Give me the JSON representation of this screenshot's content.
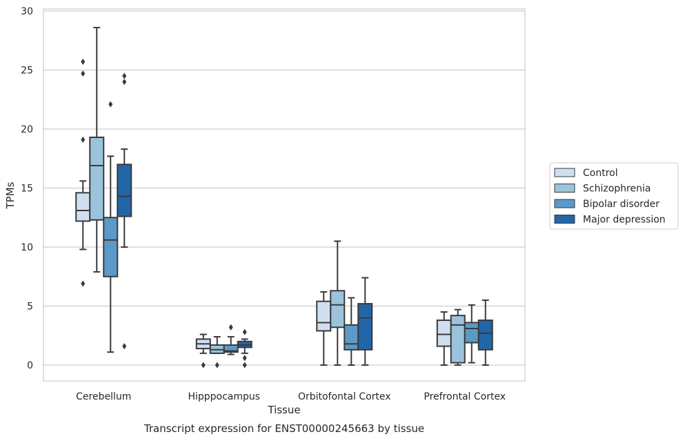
{
  "chart_data": {
    "type": "boxplot",
    "title": "Transcript expression for ENST00000245663 by tissue",
    "xlabel": "Tissue",
    "ylabel": "TPMs",
    "ylim": [
      -1.3,
      30.1
    ],
    "yticks": [
      0,
      5,
      10,
      15,
      20,
      25,
      30
    ],
    "grid": "horizontal",
    "legend_position": "right",
    "categories": [
      "Cerebellum",
      "Hipppocampus",
      "Orbitofontal Cortex",
      "Prefrontal Cortex"
    ],
    "series": [
      {
        "name": "Control",
        "color": "#d0dff0",
        "boxes": [
          {
            "whislo": 9.8,
            "q1": 12.2,
            "med": 13.1,
            "q3": 14.6,
            "whishi": 15.6,
            "fliers": [
              6.9,
              19.1,
              24.7,
              25.7
            ]
          },
          {
            "whislo": 1.0,
            "q1": 1.4,
            "med": 1.8,
            "q3": 2.2,
            "whishi": 2.6,
            "fliers": [
              0
            ]
          },
          {
            "whislo": 0,
            "q1": 2.9,
            "med": 3.6,
            "q3": 5.4,
            "whishi": 6.2,
            "fliers": []
          },
          {
            "whislo": 0,
            "q1": 1.6,
            "med": 2.6,
            "q3": 3.8,
            "whishi": 4.5,
            "fliers": []
          }
        ]
      },
      {
        "name": "Schizophrenia",
        "color": "#9bc4dc",
        "boxes": [
          {
            "whislo": 7.9,
            "q1": 12.3,
            "med": 16.9,
            "q3": 19.3,
            "whishi": 28.6,
            "fliers": []
          },
          {
            "whislo": 1.0,
            "q1": 1.0,
            "med": 1.3,
            "q3": 1.7,
            "whishi": 2.4,
            "fliers": [
              0
            ]
          },
          {
            "whislo": 0,
            "q1": 3.2,
            "med": 5.1,
            "q3": 6.3,
            "whishi": 10.5,
            "fliers": []
          },
          {
            "whislo": 0,
            "q1": 0.2,
            "med": 3.4,
            "q3": 4.2,
            "whishi": 4.7,
            "fliers": []
          }
        ]
      },
      {
        "name": "Bipolar disorder",
        "color": "#5b9ac8",
        "boxes": [
          {
            "whislo": 1.1,
            "q1": 7.5,
            "med": 10.6,
            "q3": 12.5,
            "whishi": 17.7,
            "fliers": [
              22.1
            ]
          },
          {
            "whislo": 0.9,
            "q1": 1.1,
            "med": 1.2,
            "q3": 1.7,
            "whishi": 2.4,
            "fliers": [
              3.2
            ]
          },
          {
            "whislo": 0,
            "q1": 1.3,
            "med": 1.8,
            "q3": 3.4,
            "whishi": 5.7,
            "fliers": []
          },
          {
            "whislo": 0.2,
            "q1": 1.9,
            "med": 3.1,
            "q3": 3.6,
            "whishi": 5.1,
            "fliers": []
          }
        ]
      },
      {
        "name": "Major depression",
        "color": "#2266a8",
        "boxes": [
          {
            "whislo": 10.0,
            "q1": 12.6,
            "med": 14.3,
            "q3": 17.0,
            "whishi": 18.3,
            "fliers": [
              1.6,
              24.0,
              24.5
            ]
          },
          {
            "whislo": 1.0,
            "q1": 1.5,
            "med": 1.7,
            "q3": 2.0,
            "whishi": 2.2,
            "fliers": [
              0,
              0.6,
              2.8
            ]
          },
          {
            "whislo": 0,
            "q1": 1.3,
            "med": 4.0,
            "q3": 5.2,
            "whishi": 7.4,
            "fliers": []
          },
          {
            "whislo": 0,
            "q1": 1.3,
            "med": 2.7,
            "q3": 3.8,
            "whishi": 5.5,
            "fliers": []
          }
        ]
      }
    ]
  }
}
